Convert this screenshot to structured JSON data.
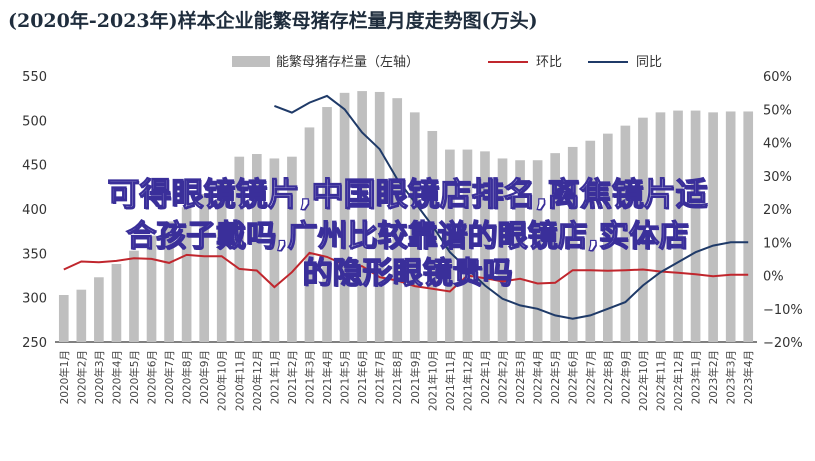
{
  "chart_data": {
    "type": "bar",
    "title": "(2020年-2023年)样本企业能繁母猪存栏量月度走势图(万头)",
    "categories": [
      "2020年1月",
      "2020年2月",
      "2020年3月",
      "2020年4月",
      "2020年5月",
      "2020年6月",
      "2020年7月",
      "2020年8月",
      "2020年9月",
      "2020年10月",
      "2020年11月",
      "2020年12月",
      "2021年1月",
      "2021年2月",
      "2021年3月",
      "2021年4月",
      "2021年5月",
      "2021年6月",
      "2021年7月",
      "2021年8月",
      "2021年9月",
      "2021年10月",
      "2021年11月",
      "2021年12月",
      "2022年1月",
      "2022年2月",
      "2022年3月",
      "2022年4月",
      "2022年5月",
      "2022年6月",
      "2022年7月",
      "2022年8月",
      "2022年9月",
      "2022年10月",
      "2022年11月",
      "2022年12月",
      "2023年1月",
      "2023年2月",
      "2023年3月",
      "2023年4月"
    ],
    "series": [
      {
        "name": "能繁母猪存栏量（左轴）",
        "type": "bar",
        "axis": "left",
        "color": "#bfbfbf",
        "values": [
          303,
          309,
          323,
          338,
          353,
          370,
          386,
          402,
          417,
          432,
          459,
          462,
          457,
          459,
          492,
          515,
          531,
          533,
          532,
          525,
          509,
          488,
          467,
          467,
          465,
          457,
          455,
          455,
          463,
          470,
          477,
          485,
          494,
          503,
          509,
          511,
          511,
          509,
          510,
          510
        ]
      },
      {
        "name": "环比",
        "type": "line",
        "axis": "right",
        "color": "#c0262d",
        "values": [
          1.8,
          4.2,
          4.0,
          4.4,
          5.2,
          5.0,
          3.8,
          6.2,
          5.8,
          5.8,
          2.0,
          1.5,
          -3.5,
          1.0,
          6.8,
          5.6,
          3.2,
          2.8,
          -0.5,
          -1.5,
          -3.2,
          -4.0,
          -4.8,
          0.0,
          -0.8,
          -1.8,
          -1.0,
          -2.4,
          -2.2,
          1.6,
          1.6,
          1.4,
          1.6,
          1.8,
          1.2,
          0.8,
          0.4,
          -0.2,
          0.2,
          0.2
        ]
      },
      {
        "name": "同比",
        "type": "line",
        "axis": "right",
        "color": "#1f3a68",
        "values": [
          null,
          null,
          null,
          null,
          null,
          null,
          null,
          null,
          null,
          null,
          null,
          null,
          51,
          49,
          52,
          54,
          50,
          43,
          38,
          29,
          22,
          15,
          7,
          2,
          -3,
          -7,
          -9,
          -10,
          -12,
          -13,
          -12,
          -10,
          -8,
          -3,
          1,
          4,
          7,
          9,
          10,
          10
        ]
      }
    ],
    "ylabel_left_ticks": [
      "550",
      "500",
      "450",
      "400",
      "350",
      "300",
      "250"
    ],
    "ylabel_right_ticks": [
      "60%",
      "50%",
      "40%",
      "30%",
      "20%",
      "10%",
      "0%",
      "−10%",
      "−20%"
    ],
    "ylim_left": [
      250,
      550
    ],
    "ylim_right": [
      -20,
      60
    ],
    "legend_placement": "top-center",
    "grid": false
  },
  "overlay_text": {
    "line1": "可得眼镜镜片,中国眼镜店排名,离焦镜片适",
    "line2": "合孩子戴吗,广州比较靠谱的眼镜店,实体店",
    "line3": "的隐形眼镜贵吗"
  }
}
